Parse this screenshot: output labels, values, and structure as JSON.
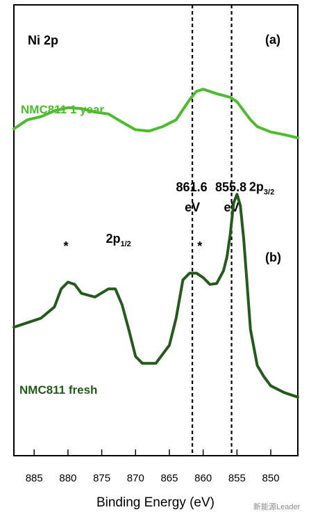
{
  "figure": {
    "title": "Ni 2p",
    "panel_labels": [
      "(a)",
      "(b)"
    ],
    "watermark": "新能源Leader"
  },
  "chart_data": {
    "type": "line",
    "title": "Ni 2p",
    "xlabel": "Binding Energy (eV)",
    "ylabel": "",
    "xlim": [
      888,
      846
    ],
    "x_reversed": true,
    "ylim": [
      0,
      1
    ],
    "ticks": [
      885,
      880,
      875,
      870,
      865,
      860,
      855,
      850
    ],
    "reference_lines": [
      {
        "x": 861.6,
        "label_value": "861.6",
        "label_unit": "eV"
      },
      {
        "x": 855.8,
        "label_value": "855.8",
        "label_unit": "eV"
      }
    ],
    "series": [
      {
        "name": "NMC811 1 year",
        "color": "#4cbb2c",
        "x": [
          888,
          886,
          884,
          882,
          880,
          878,
          876,
          874,
          872,
          870,
          868,
          866,
          864,
          862,
          861,
          860,
          858,
          856,
          855,
          854,
          853,
          852,
          850,
          848,
          846
        ],
        "y": [
          0.725,
          0.745,
          0.752,
          0.765,
          0.772,
          0.77,
          0.762,
          0.758,
          0.74,
          0.723,
          0.72,
          0.73,
          0.745,
          0.79,
          0.808,
          0.813,
          0.803,
          0.795,
          0.785,
          0.765,
          0.745,
          0.73,
          0.718,
          0.712,
          0.705
        ]
      },
      {
        "name": "NMC811 fresh",
        "color": "#245a1c",
        "x": [
          888,
          886,
          884,
          882,
          881,
          880,
          879,
          878,
          876,
          874,
          873,
          872,
          871,
          870,
          869,
          867,
          865,
          864,
          863,
          862,
          861,
          860,
          859,
          858,
          857,
          856.5,
          856,
          855.5,
          855,
          854.5,
          854,
          853.5,
          853,
          852,
          851,
          850,
          848,
          846
        ],
        "y": [
          0.285,
          0.295,
          0.305,
          0.33,
          0.37,
          0.385,
          0.38,
          0.36,
          0.352,
          0.37,
          0.37,
          0.335,
          0.28,
          0.22,
          0.205,
          0.205,
          0.245,
          0.305,
          0.39,
          0.405,
          0.405,
          0.395,
          0.38,
          0.382,
          0.41,
          0.44,
          0.49,
          0.56,
          0.58,
          0.555,
          0.48,
          0.38,
          0.28,
          0.2,
          0.175,
          0.155,
          0.14,
          0.13
        ]
      }
    ],
    "annotations": [
      {
        "text": "*",
        "x": 880.3,
        "y": 0.455
      },
      {
        "text": "*",
        "x": 860.5,
        "y": 0.455
      },
      {
        "text": "2p",
        "sub": "1/2",
        "x": 874.4,
        "y": 0.472
      },
      {
        "text": "2p",
        "sub": "3/2",
        "x": 853.2,
        "y": 0.587
      }
    ],
    "grid": false,
    "legend": "inline labels"
  }
}
